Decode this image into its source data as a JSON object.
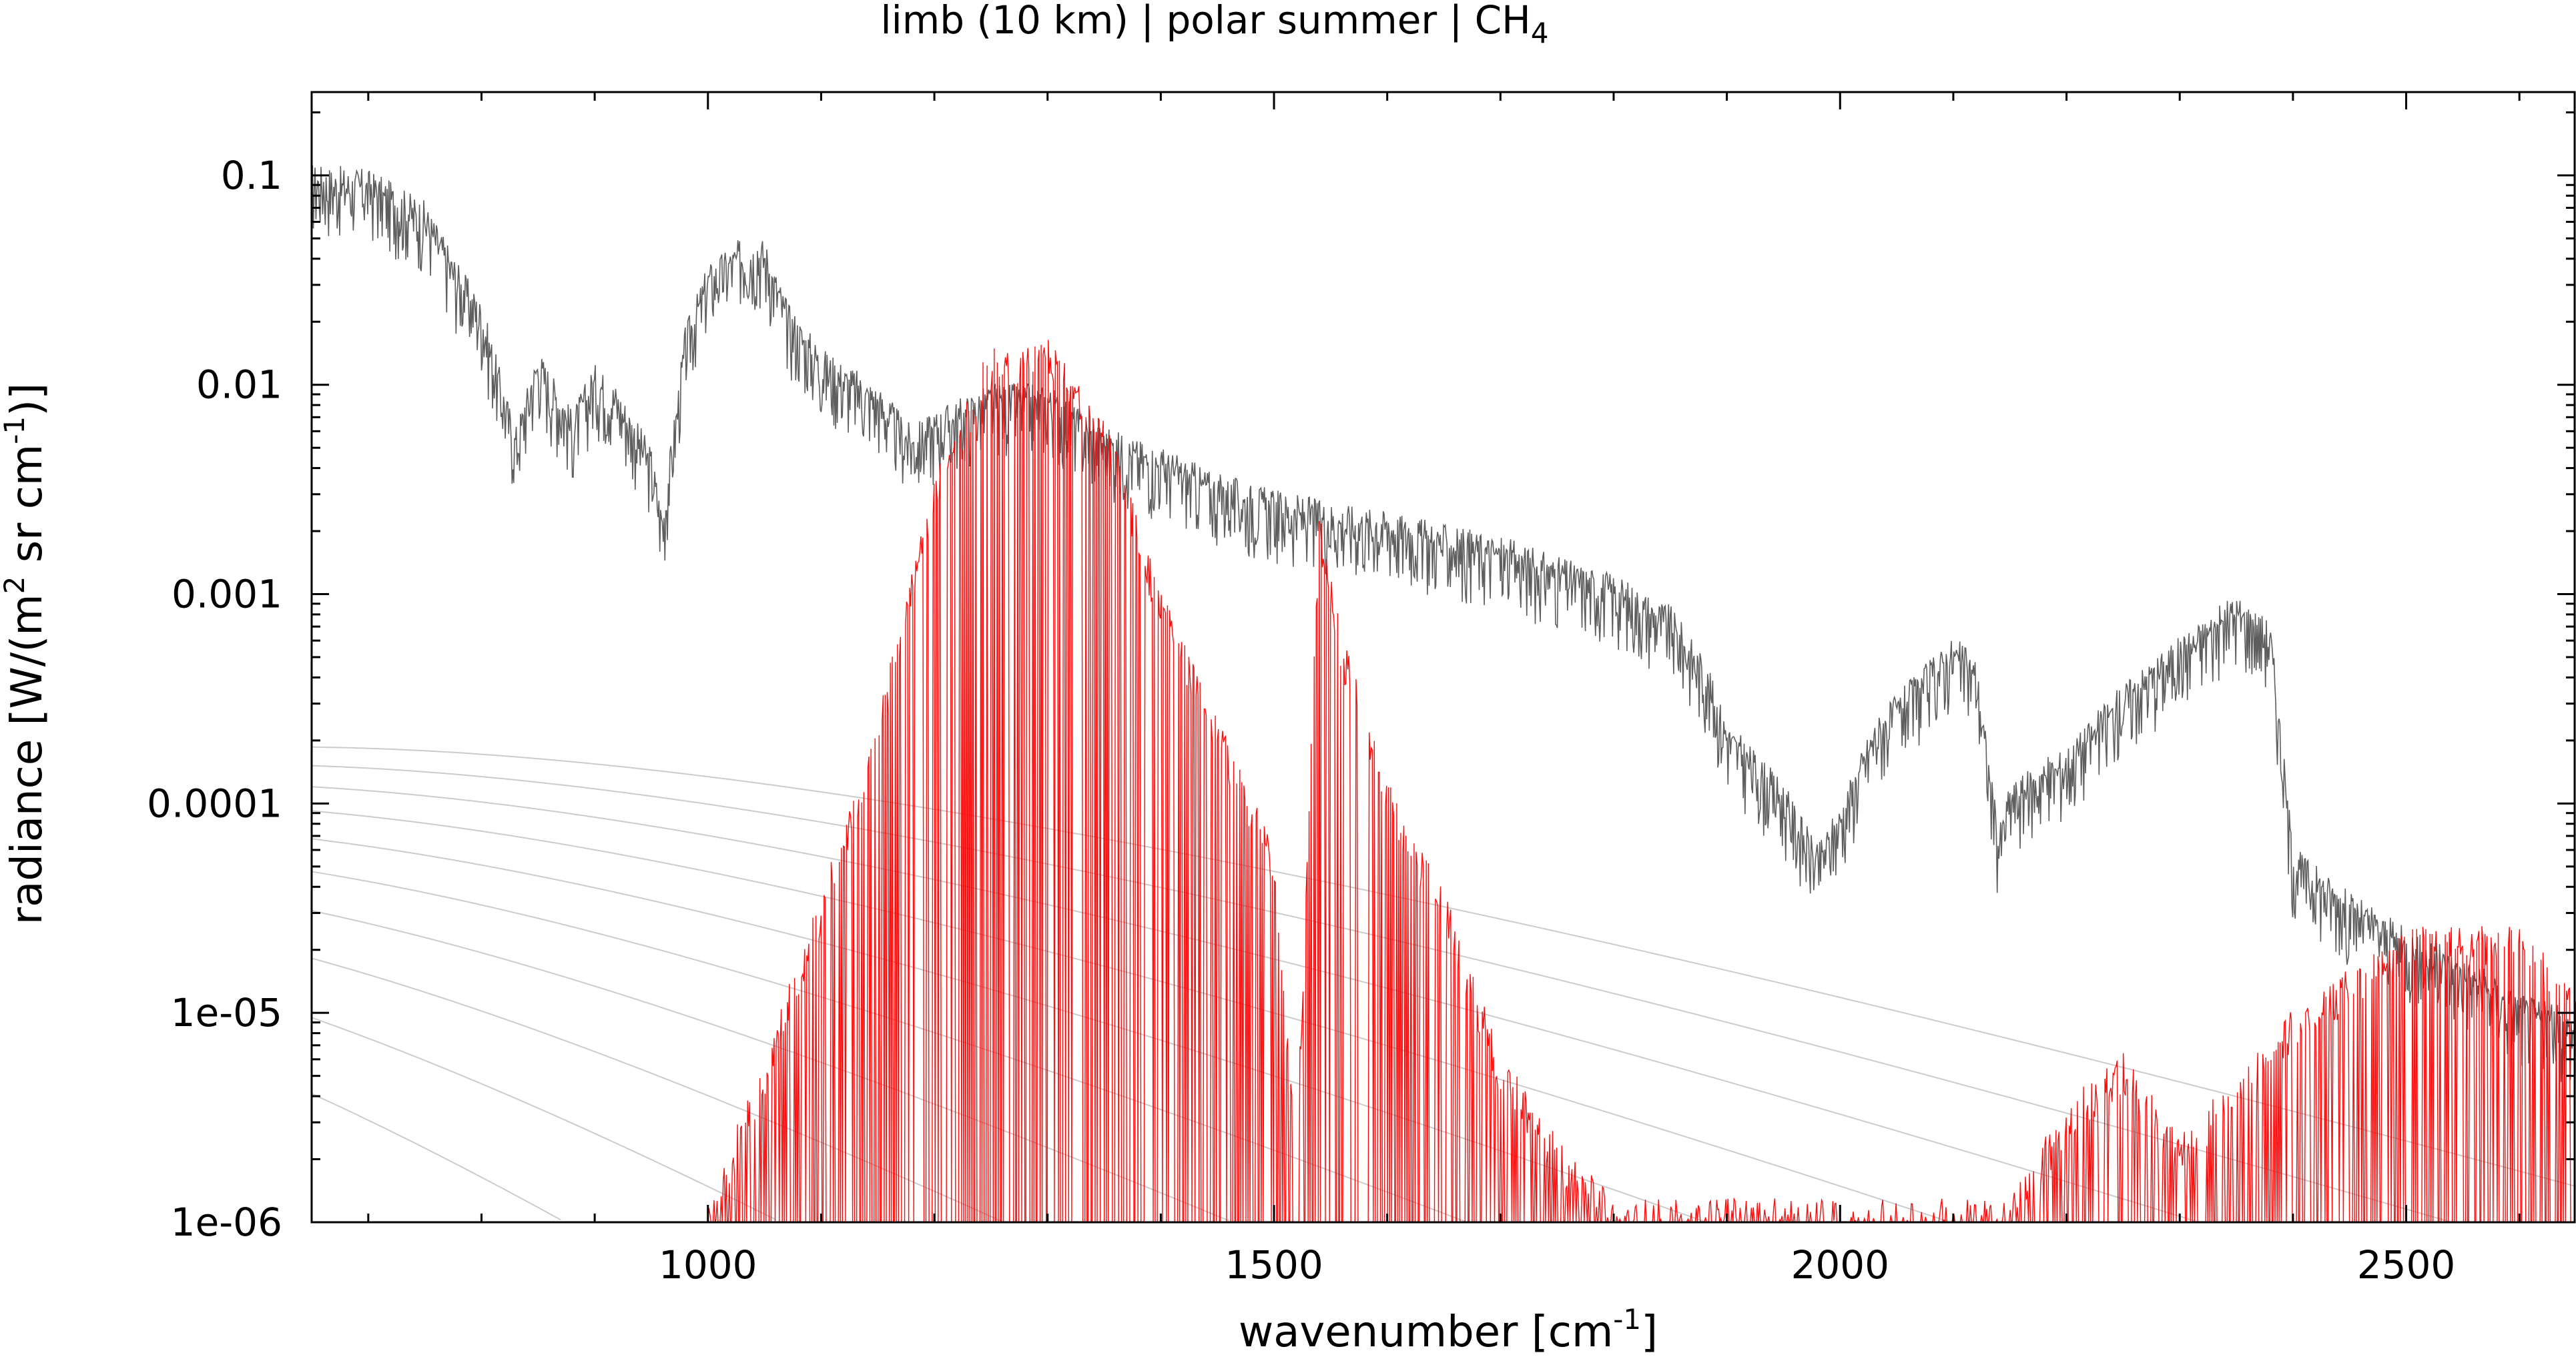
{
  "chart_data": {
    "type": "line",
    "title": "limb (10 km) | polar summer | CH",
    "title_subscript": "4",
    "xlabel": {
      "text": "wavenumber [cm",
      "sup": "-1",
      "suffix": "]"
    },
    "ylabel": {
      "pre": "radiance [W/(m",
      "sup1": "2",
      "mid": " sr cm",
      "sup2": "-1",
      "suffix": ")]"
    },
    "xlim": [
      650,
      2650
    ],
    "ylim": [
      1e-06,
      0.25
    ],
    "yscale": "log",
    "x_ticks": [
      1000,
      1500,
      2000,
      2500
    ],
    "x_tick_labels": [
      "1000",
      "1500",
      "2000",
      "2500"
    ],
    "y_ticks": [
      1e-06,
      1e-05,
      0.0001,
      0.001,
      0.01,
      0.1
    ],
    "y_tick_labels": [
      "1e-06",
      "1e-05",
      "0.0001",
      "0.001",
      "0.01",
      "0.1"
    ],
    "grid": false,
    "legend": "none",
    "colors": {
      "total_radiance": "#555555",
      "ch4_contribution": "#ff0000",
      "planck_curves": "#cccccc",
      "light_band": "#bbbbbb"
    },
    "series": [
      {
        "role": "total_radiance",
        "points": [
          [
            650,
            0.09
          ],
          [
            700,
            0.085
          ],
          [
            750,
            0.06
          ],
          [
            780,
            0.03
          ],
          [
            800,
            0.02
          ],
          [
            830,
            0.005
          ],
          [
            850,
            0.012
          ],
          [
            880,
            0.006
          ],
          [
            900,
            0.01
          ],
          [
            920,
            0.008
          ],
          [
            950,
            0.004
          ],
          [
            960,
            0.002
          ],
          [
            980,
            0.015
          ],
          [
            1000,
            0.03
          ],
          [
            1030,
            0.04
          ],
          [
            1050,
            0.04
          ],
          [
            1070,
            0.02
          ],
          [
            1100,
            0.012
          ],
          [
            1150,
            0.008
          ],
          [
            1180,
            0.005
          ],
          [
            1200,
            0.006
          ],
          [
            1250,
            0.008
          ],
          [
            1300,
            0.008
          ],
          [
            1350,
            0.005
          ],
          [
            1400,
            0.004
          ],
          [
            1450,
            0.003
          ],
          [
            1500,
            0.0025
          ],
          [
            1550,
            0.0022
          ],
          [
            1600,
            0.002
          ],
          [
            1650,
            0.0017
          ],
          [
            1700,
            0.0015
          ],
          [
            1750,
            0.0012
          ],
          [
            1800,
            0.001
          ],
          [
            1850,
            0.0007
          ],
          [
            1880,
            0.0004
          ],
          [
            1900,
            0.0002
          ],
          [
            1950,
            0.0001
          ],
          [
            1980,
            5e-05
          ],
          [
            2000,
            8e-05
          ],
          [
            2030,
            0.0002
          ],
          [
            2060,
            0.0003
          ],
          [
            2100,
            0.0005
          ],
          [
            2120,
            0.0004
          ],
          [
            2140,
            6e-05
          ],
          [
            2150,
            0.0001
          ],
          [
            2200,
            0.00015
          ],
          [
            2250,
            0.0003
          ],
          [
            2300,
            0.0005
          ],
          [
            2350,
            0.0008
          ],
          [
            2380,
            0.0006
          ],
          [
            2400,
            5e-05
          ],
          [
            2450,
            3e-05
          ],
          [
            2500,
            2e-05
          ],
          [
            2550,
            1.5e-05
          ],
          [
            2600,
            1e-05
          ],
          [
            2650,
            8e-06
          ]
        ]
      },
      {
        "role": "ch4_contribution",
        "points": [
          [
            1000,
            1e-06
          ],
          [
            1050,
            5e-06
          ],
          [
            1100,
            3e-05
          ],
          [
            1150,
            0.0002
          ],
          [
            1200,
            0.003
          ],
          [
            1250,
            0.012
          ],
          [
            1300,
            0.013
          ],
          [
            1350,
            0.006
          ],
          [
            1400,
            0.0008
          ],
          [
            1450,
            0.0002
          ],
          [
            1500,
            5e-05
          ],
          [
            1520,
            2e-06
          ],
          [
            1540,
            0.002
          ],
          [
            1560,
            0.0005
          ],
          [
            1600,
            0.0001
          ],
          [
            1650,
            3e-05
          ],
          [
            1700,
            5e-06
          ],
          [
            1750,
            2e-06
          ],
          [
            1800,
            1e-06
          ],
          [
            2150,
            1e-06
          ],
          [
            2200,
            3e-06
          ],
          [
            2250,
            5e-06
          ],
          [
            2300,
            2e-06
          ],
          [
            2400,
            8e-06
          ],
          [
            2500,
            2e-05
          ],
          [
            2600,
            2e-05
          ],
          [
            2650,
            1e-05
          ]
        ]
      }
    ],
    "planck_reference_curves": [
      {
        "temperature_k": 320
      },
      {
        "temperature_k": 300
      },
      {
        "temperature_k": 280
      },
      {
        "temperature_k": 260
      },
      {
        "temperature_k": 240
      },
      {
        "temperature_k": 220
      },
      {
        "temperature_k": 200
      },
      {
        "temperature_k": 180
      },
      {
        "temperature_k": 160
      },
      {
        "temperature_k": 140
      }
    ]
  }
}
